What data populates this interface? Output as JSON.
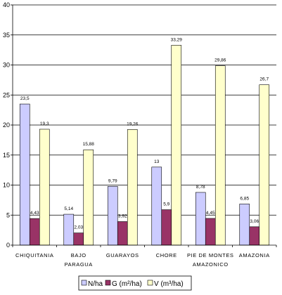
{
  "chart_data": {
    "type": "bar",
    "categories": [
      [
        "CHIQUITANIA"
      ],
      [
        "BAJO",
        "PARAGUA"
      ],
      [
        "GUARAYOS"
      ],
      [
        "CHORE"
      ],
      [
        "PIE DE MONTES",
        "AMAZONICO"
      ],
      [
        "AMAZONIA"
      ]
    ],
    "series": [
      {
        "name": "N/ha",
        "color": "#ccccff",
        "values": [
          23.5,
          5.14,
          9.79,
          13,
          8.78,
          6.85
        ],
        "labels": [
          "23,5",
          "5,14",
          "9,79",
          "13",
          "8,78",
          "6,85"
        ]
      },
      {
        "name": "G (m²/ha)",
        "color": "#993366",
        "values": [
          4.43,
          2.03,
          3.92,
          5.9,
          4.45,
          3.06
        ],
        "labels": [
          "4,43",
          "2,03",
          "3,92",
          "5,9",
          "4,45",
          "3,06"
        ]
      },
      {
        "name": "V (m³/ha)",
        "color": "#ffffcc",
        "values": [
          19.3,
          15.88,
          19.26,
          33.29,
          29.86,
          26.7
        ],
        "labels": [
          "19,3",
          "15,88",
          "19,26",
          "33,29",
          "29,86",
          "26,7"
        ]
      }
    ],
    "ylim": [
      0,
      40
    ],
    "yticks": [
      0,
      5,
      10,
      15,
      20,
      25,
      30,
      35,
      40
    ],
    "grid": true,
    "legend_position": "bottom"
  }
}
